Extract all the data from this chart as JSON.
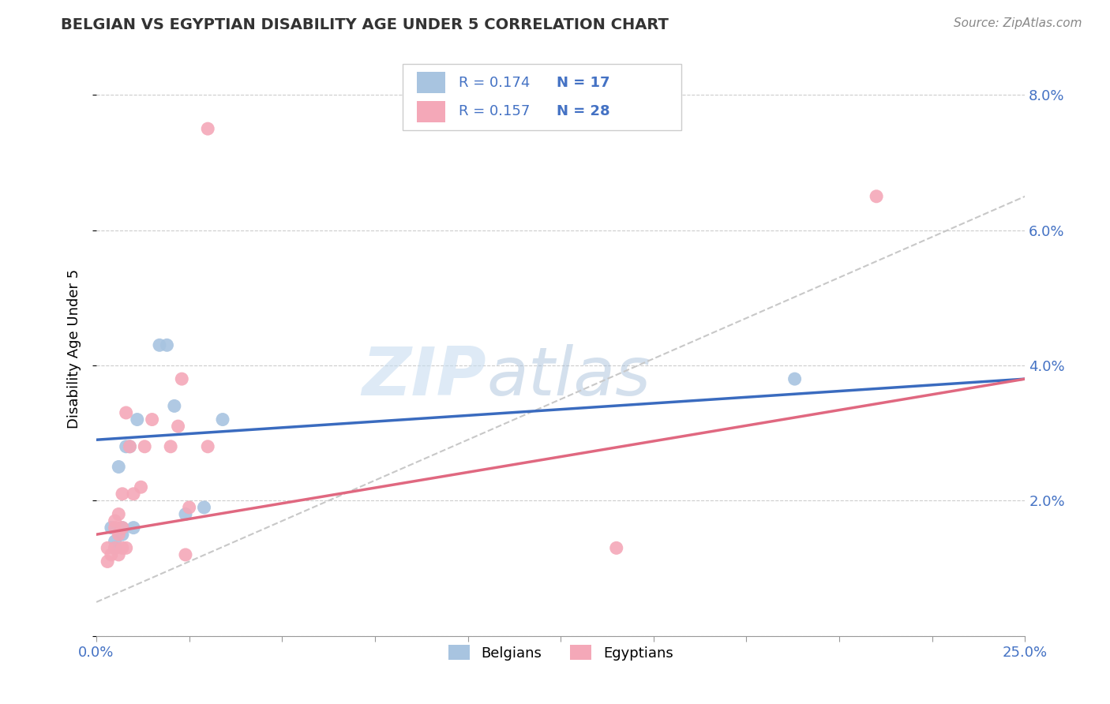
{
  "title": "BELGIAN VS EGYPTIAN DISABILITY AGE UNDER 5 CORRELATION CHART",
  "source": "Source: ZipAtlas.com",
  "ylabel": "Disability Age Under 5",
  "xlim": [
    0.0,
    0.25
  ],
  "ylim": [
    0.0,
    0.085
  ],
  "xticks": [
    0.0,
    0.025,
    0.05,
    0.075,
    0.1,
    0.125,
    0.15,
    0.175,
    0.2,
    0.225,
    0.25
  ],
  "yticks": [
    0.0,
    0.02,
    0.04,
    0.06,
    0.08
  ],
  "yticklabels_right": [
    "",
    "2.0%",
    "4.0%",
    "6.0%",
    "8.0%"
  ],
  "belgian_color": "#a8c4e0",
  "egyptian_color": "#f4a8b8",
  "belgian_line_color": "#3a6bbf",
  "egyptian_line_color": "#e06880",
  "trend_line_color": "#c8c8c8",
  "legend_color": "#4472c4",
  "legend_R_belgian": "R = 0.174",
  "legend_N_belgian": "N = 17",
  "legend_R_egyptian": "R = 0.157",
  "legend_N_egyptian": "N = 28",
  "watermark_zip": "ZIP",
  "watermark_atlas": "atlas",
  "belgians_label": "Belgians",
  "egyptians_label": "Egyptians",
  "belgian_scatter_x": [
    0.004,
    0.005,
    0.005,
    0.006,
    0.007,
    0.007,
    0.008,
    0.009,
    0.01,
    0.011,
    0.017,
    0.019,
    0.021,
    0.024,
    0.029,
    0.034,
    0.188
  ],
  "belgian_scatter_y": [
    0.016,
    0.014,
    0.013,
    0.025,
    0.015,
    0.016,
    0.028,
    0.028,
    0.016,
    0.032,
    0.043,
    0.043,
    0.034,
    0.018,
    0.019,
    0.032,
    0.038
  ],
  "egyptian_scatter_x": [
    0.003,
    0.003,
    0.004,
    0.005,
    0.005,
    0.005,
    0.006,
    0.006,
    0.006,
    0.007,
    0.007,
    0.007,
    0.008,
    0.008,
    0.009,
    0.01,
    0.012,
    0.013,
    0.015,
    0.02,
    0.022,
    0.023,
    0.024,
    0.025,
    0.03,
    0.03,
    0.14,
    0.21
  ],
  "egyptian_scatter_y": [
    0.011,
    0.013,
    0.012,
    0.013,
    0.016,
    0.017,
    0.012,
    0.015,
    0.018,
    0.013,
    0.016,
    0.021,
    0.013,
    0.033,
    0.028,
    0.021,
    0.022,
    0.028,
    0.032,
    0.028,
    0.031,
    0.038,
    0.012,
    0.019,
    0.028,
    0.075,
    0.013,
    0.065
  ],
  "belgian_trend_x": [
    0.0,
    0.25
  ],
  "belgian_trend_y": [
    0.029,
    0.038
  ],
  "egyptian_trend_x": [
    0.0,
    0.25
  ],
  "egyptian_trend_y": [
    0.015,
    0.038
  ],
  "gray_trend_x": [
    0.0,
    0.25
  ],
  "gray_trend_y": [
    0.005,
    0.065
  ]
}
